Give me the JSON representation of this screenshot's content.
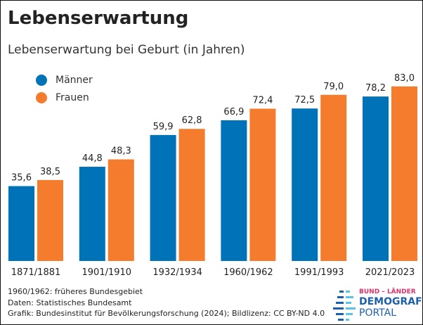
{
  "title": "Lebenserwartung",
  "subtitle": "Lebenserwartung bei Geburt (in Jahren)",
  "colors": {
    "maenner": "#0072b8",
    "frauen": "#f47c2c"
  },
  "chart_data": {
    "type": "bar",
    "categories": [
      "1871/1881",
      "1901/1910",
      "1932/1934",
      "1960/1962",
      "1991/1993",
      "2021/2023"
    ],
    "series": [
      {
        "name": "Männer",
        "values": [
          35.6,
          44.8,
          59.9,
          66.9,
          72.5,
          78.2
        ],
        "labels": [
          "35,6",
          "44,8",
          "59,9",
          "66,9",
          "72,5",
          "78,2"
        ]
      },
      {
        "name": "Frauen",
        "values": [
          38.5,
          48.3,
          62.8,
          72.4,
          79.0,
          83.0
        ],
        "labels": [
          "38,5",
          "48,3",
          "62,8",
          "72,4",
          "79,0",
          "83,0"
        ]
      }
    ],
    "ylim": [
      0,
      85
    ],
    "grid": false,
    "legend": "top-left"
  },
  "footer": [
    "1960/1962: früheres Bundesgebiet",
    "Daten: Statistisches Bundesamt",
    "Grafik: Bundesinstitut für Bevölkerungsforschung (2024); Bildlizenz: CC BY-ND 4.0"
  ],
  "logo": {
    "line1": "BUND – LÄNDER",
    "line2": "DEMOGRAFIE",
    "line3": "PORTAL"
  }
}
